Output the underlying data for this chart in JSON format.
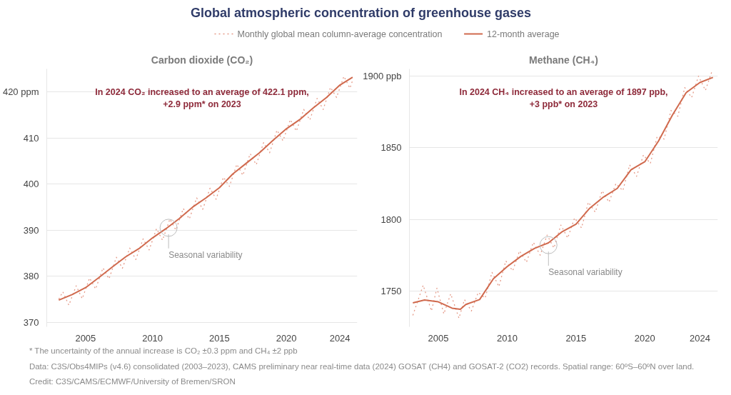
{
  "chart_data": [
    {
      "type": "line",
      "title": "Global atmospheric concentration of greenhouse gases",
      "subtitle": "Carbon dioxide (CO₂)",
      "legend": "top",
      "grid": "y",
      "xlim": [
        2002.1,
        2025.3
      ],
      "ylim": [
        369,
        425
      ],
      "xticks": [
        2005,
        2010,
        2015,
        2020,
        2024
      ],
      "yticks": [
        370,
        380,
        390,
        400,
        410,
        {
          "value": 420,
          "label": "420 ppm"
        }
      ],
      "series": [
        {
          "name": "Monthly global mean column-average concentration",
          "color": "#e59a88",
          "line_style": "dotted",
          "x": [
            2003.0,
            2003.3,
            2003.75,
            2004.3,
            2004.75,
            2005.3,
            2005.75,
            2006.3,
            2006.75,
            2007.3,
            2007.75,
            2008.3,
            2008.75,
            2009.3,
            2009.75,
            2010.3,
            2010.75,
            2011.3,
            2011.75,
            2012.3,
            2012.75,
            2013.3,
            2013.75,
            2014.3,
            2014.75,
            2015.3,
            2015.75,
            2016.3,
            2016.75,
            2017.3,
            2017.75,
            2018.3,
            2018.75,
            2019.3,
            2019.75,
            2020.3,
            2020.75,
            2021.3,
            2021.75,
            2022.3,
            2022.75,
            2023.3,
            2023.75,
            2024.3,
            2024.75,
            2024.95
          ],
          "values": [
            375.0,
            376.6,
            373.7,
            377.9,
            375.1,
            379.6,
            377.2,
            381.8,
            379.4,
            384.1,
            381.7,
            386.1,
            383.6,
            388.1,
            385.7,
            390.3,
            387.8,
            392.4,
            390.0,
            394.7,
            392.4,
            397.0,
            394.5,
            399.1,
            396.7,
            401.5,
            399.5,
            404.3,
            401.9,
            406.6,
            404.2,
            409.0,
            406.8,
            411.7,
            409.4,
            414.0,
            411.5,
            416.2,
            413.9,
            418.6,
            416.2,
            421.0,
            418.8,
            423.4,
            420.8,
            422.5
          ]
        },
        {
          "name": "12-month average",
          "color": "#d06a4e",
          "line_style": "solid",
          "x": [
            2003,
            2004,
            2005,
            2006,
            2007,
            2008,
            2009,
            2010,
            2011,
            2012,
            2013,
            2014,
            2015,
            2016,
            2017,
            2018,
            2019,
            2020,
            2021,
            2022,
            2023,
            2024,
            2024.95
          ],
          "values": [
            374.8,
            376.0,
            377.5,
            379.7,
            382.0,
            384.2,
            386.0,
            388.3,
            390.3,
            392.5,
            395.0,
            397.0,
            399.2,
            402.2,
            404.5,
            406.8,
            409.5,
            412.0,
            414.0,
            416.5,
            418.8,
            421.5,
            423.2
          ]
        }
      ],
      "annotations": [
        "In 2024 CO₂ increased to an average of 422.1 ppm,\n+2.9 ppm* on 2023",
        {
          "text": "Seasonal variability",
          "x": 2011.2,
          "y": 390.5
        },
        "* The uncertainty of the annual increase is CO₂ ±0.3 ppm and CH₄ ±2 ppb"
      ]
    },
    {
      "type": "line",
      "title": "Methane (CH₄)",
      "grid": "y",
      "xlim": [
        2002.9,
        2025.3
      ],
      "ylim": [
        1725,
        1905
      ],
      "xticks": [
        2005,
        2010,
        2015,
        2020,
        2024
      ],
      "yticks": [
        1750,
        1800,
        1850,
        {
          "value": 1900,
          "label": "1900 ppb"
        }
      ],
      "series": [
        {
          "color": "#e59a88",
          "line_style": "dotted",
          "x": [
            2003.15,
            2003.9,
            2004.5,
            2004.9,
            2005.4,
            2005.9,
            2006.5,
            2006.9,
            2007.4,
            2007.9,
            2008.4,
            2008.9,
            2009.4,
            2009.9,
            2010.4,
            2010.9,
            2011.4,
            2011.9,
            2012.4,
            2012.9,
            2013.4,
            2013.9,
            2014.4,
            2014.9,
            2015.4,
            2015.9,
            2016.4,
            2016.9,
            2017.4,
            2017.9,
            2018.4,
            2018.9,
            2019.4,
            2019.9,
            2020.4,
            2020.9,
            2021.4,
            2021.9,
            2022.4,
            2022.9,
            2023.4,
            2023.9,
            2024.4,
            2024.9
          ],
          "values": [
            1733,
            1754,
            1736,
            1752,
            1734,
            1748,
            1731,
            1744,
            1736,
            1749,
            1745,
            1763,
            1753,
            1771,
            1764,
            1778,
            1770,
            1784,
            1775,
            1789,
            1780,
            1796,
            1787,
            1801,
            1794,
            1812,
            1805,
            1820,
            1812,
            1825,
            1820,
            1838,
            1830,
            1845,
            1839,
            1858,
            1856,
            1876,
            1872,
            1892,
            1885,
            1900,
            1890,
            1904
          ]
        },
        {
          "color": "#d06a4e",
          "line_style": "solid",
          "x": [
            2003.15,
            2004,
            2005,
            2006,
            2006.6,
            2007,
            2008,
            2009,
            2010,
            2011,
            2012,
            2013,
            2014,
            2015,
            2016,
            2017,
            2018,
            2019,
            2020,
            2021,
            2022,
            2023,
            2024,
            2024.95
          ],
          "values": [
            1741.7,
            1743.7,
            1742.4,
            1738.0,
            1737.2,
            1740.6,
            1744.0,
            1758.5,
            1767.0,
            1774.2,
            1779.8,
            1783.6,
            1791.4,
            1796.6,
            1807.8,
            1815.6,
            1821.6,
            1834.6,
            1840.2,
            1854.8,
            1872.7,
            1888.4,
            1895.5,
            1899.1
          ]
        }
      ],
      "annotations": [
        "In 2024 CH₄ increased to an average of 1897 ppb,\n+3 ppb* on 2023",
        {
          "text": "Seasonal variability",
          "x": 2013.0,
          "y": 1782
        },
        "Data: C3S/Obs4MIPs (v4.6) consolidated (2003–2023), CAMS preliminary near real-time data (2024) GOSAT (CH4) and GOSAT-2 (CO2) records. Spatial range: 60ºS–60ºN over land.",
        "Credit: C3S/CAMS/ECMWF/University of Bremen/SRON"
      ]
    }
  ]
}
